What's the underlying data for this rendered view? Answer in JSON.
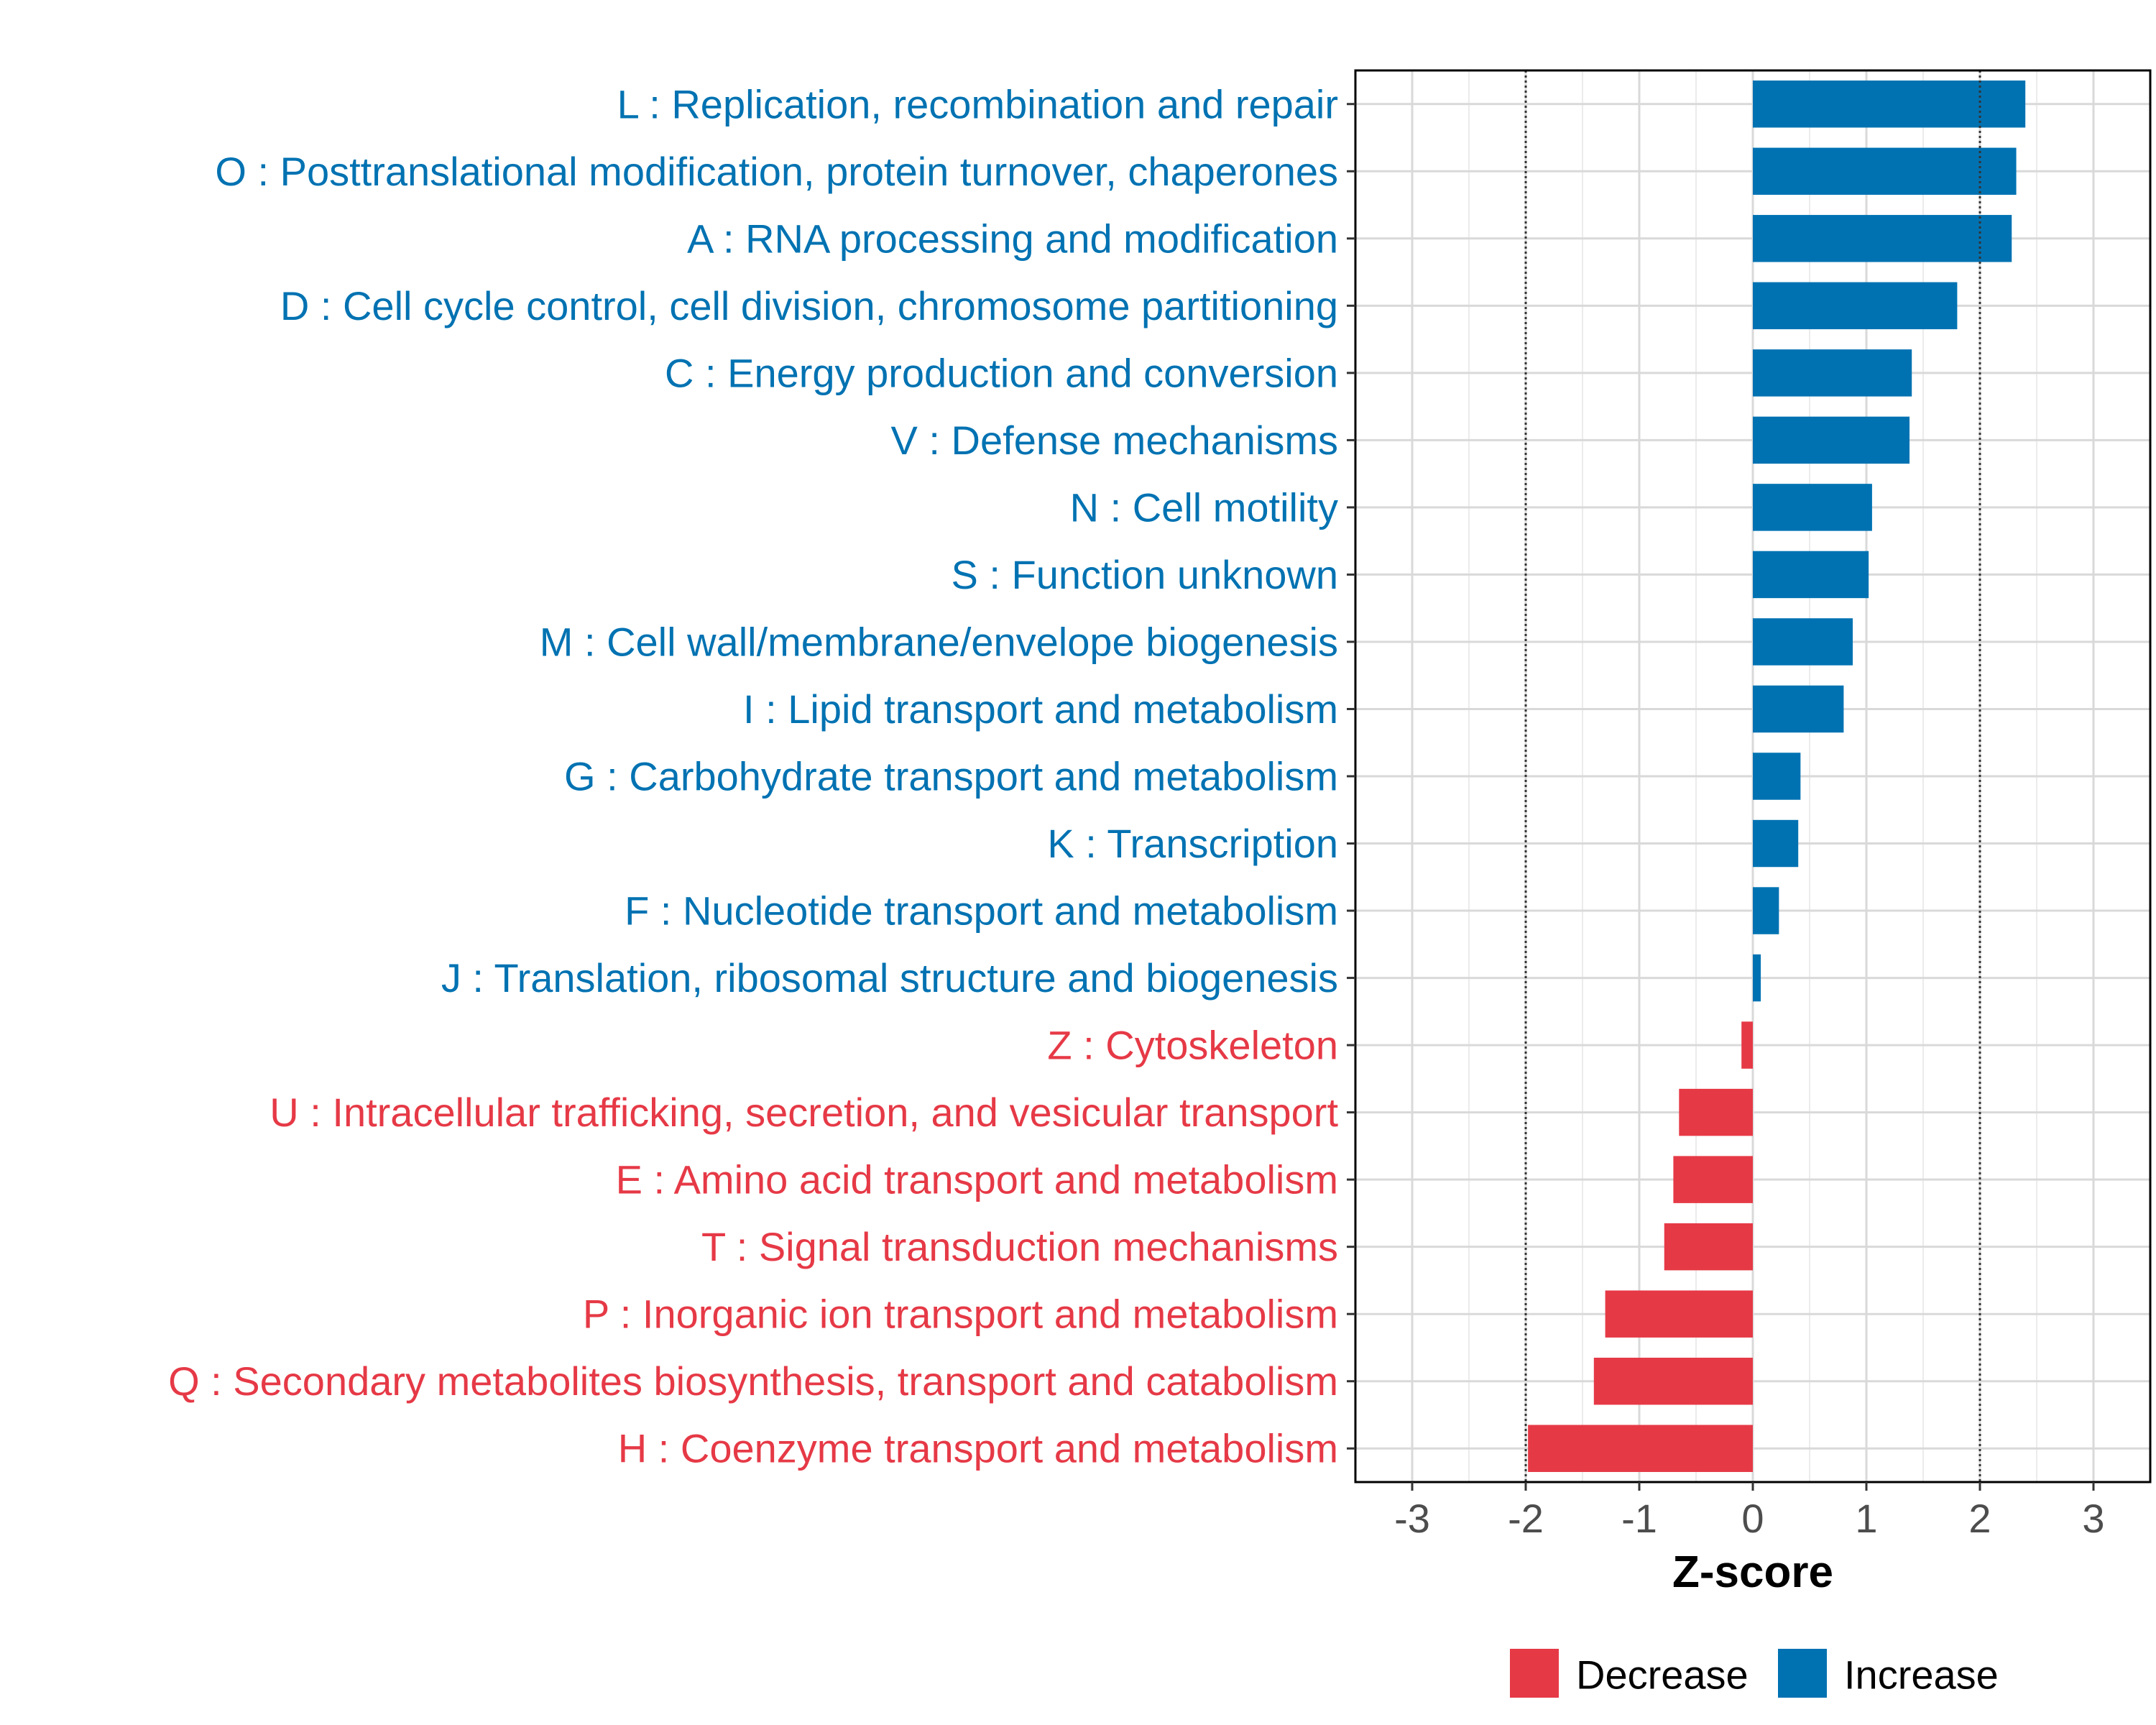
{
  "chart_data": {
    "type": "bar",
    "orientation": "horizontal",
    "title": "",
    "xlabel": "Z-score",
    "ylabel": "",
    "xlim": [
      -3.5,
      3.5
    ],
    "xticks": [
      -3,
      -2,
      -1,
      0,
      1,
      2,
      3
    ],
    "xtick_labels": [
      "-3",
      "-2",
      "-1",
      "0",
      "1",
      "2",
      "3"
    ],
    "reference_lines": [
      -2,
      2
    ],
    "grid": true,
    "legend_position": "bottom",
    "colors": {
      "Increase": "#0072B2",
      "Decrease": "#E63946"
    },
    "legend": [
      {
        "label": "Decrease",
        "color": "#E63946"
      },
      {
        "label": "Increase",
        "color": "#0072B2"
      }
    ],
    "categories": [
      "L : Replication, recombination and repair",
      "O : Posttranslational modification, protein turnover, chaperones",
      "A : RNA processing and modification",
      "D : Cell cycle control, cell division, chromosome partitioning",
      "C : Energy production and conversion",
      "V : Defense mechanisms",
      "N : Cell motility",
      "S : Function unknown",
      "M : Cell wall/membrane/envelope biogenesis",
      "I : Lipid transport and metabolism",
      "G : Carbohydrate transport and metabolism",
      "K : Transcription",
      "F : Nucleotide transport and metabolism",
      "J : Translation, ribosomal structure and biogenesis",
      "Z : Cytoskeleton",
      "U : Intracellular trafficking, secretion, and vesicular transport",
      "E : Amino acid transport and metabolism",
      "T : Signal transduction mechanisms",
      "P : Inorganic ion transport and metabolism",
      "Q : Secondary metabolites biosynthesis, transport and catabolism",
      "H : Coenzyme transport and metabolism"
    ],
    "values": [
      2.4,
      2.32,
      2.28,
      1.8,
      1.4,
      1.38,
      1.05,
      1.02,
      0.88,
      0.8,
      0.42,
      0.4,
      0.23,
      0.07,
      -0.1,
      -0.65,
      -0.7,
      -0.78,
      -1.3,
      -1.4,
      -1.98
    ]
  }
}
